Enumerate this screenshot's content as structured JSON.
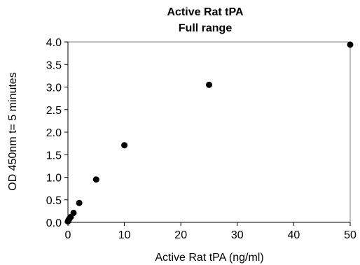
{
  "chart_data": {
    "type": "scatter",
    "title": "Active Rat tPA",
    "subtitle": "Full range",
    "xlabel": "Active Rat tPA (ng/ml)",
    "ylabel": "OD 450nm t=  5 minutes",
    "xlim": [
      0,
      50
    ],
    "ylim": [
      0,
      4.0
    ],
    "xticks": [
      "0",
      "10",
      "20",
      "30",
      "40",
      "50"
    ],
    "yticks": [
      "0.0",
      "0.5",
      "1.0",
      "1.5",
      "2.0",
      "2.5",
      "3.0",
      "3.5",
      "4.0"
    ],
    "grid": false,
    "legend": "none",
    "marker_color": "#000000",
    "series": [
      {
        "x": [
          0,
          0.0625,
          0.125,
          0.25,
          0.5,
          1,
          2,
          5,
          10,
          25,
          50
        ],
        "y": [
          0.02,
          0.04,
          0.05,
          0.08,
          0.12,
          0.21,
          0.43,
          0.95,
          1.71,
          3.05,
          3.94
        ]
      }
    ]
  }
}
